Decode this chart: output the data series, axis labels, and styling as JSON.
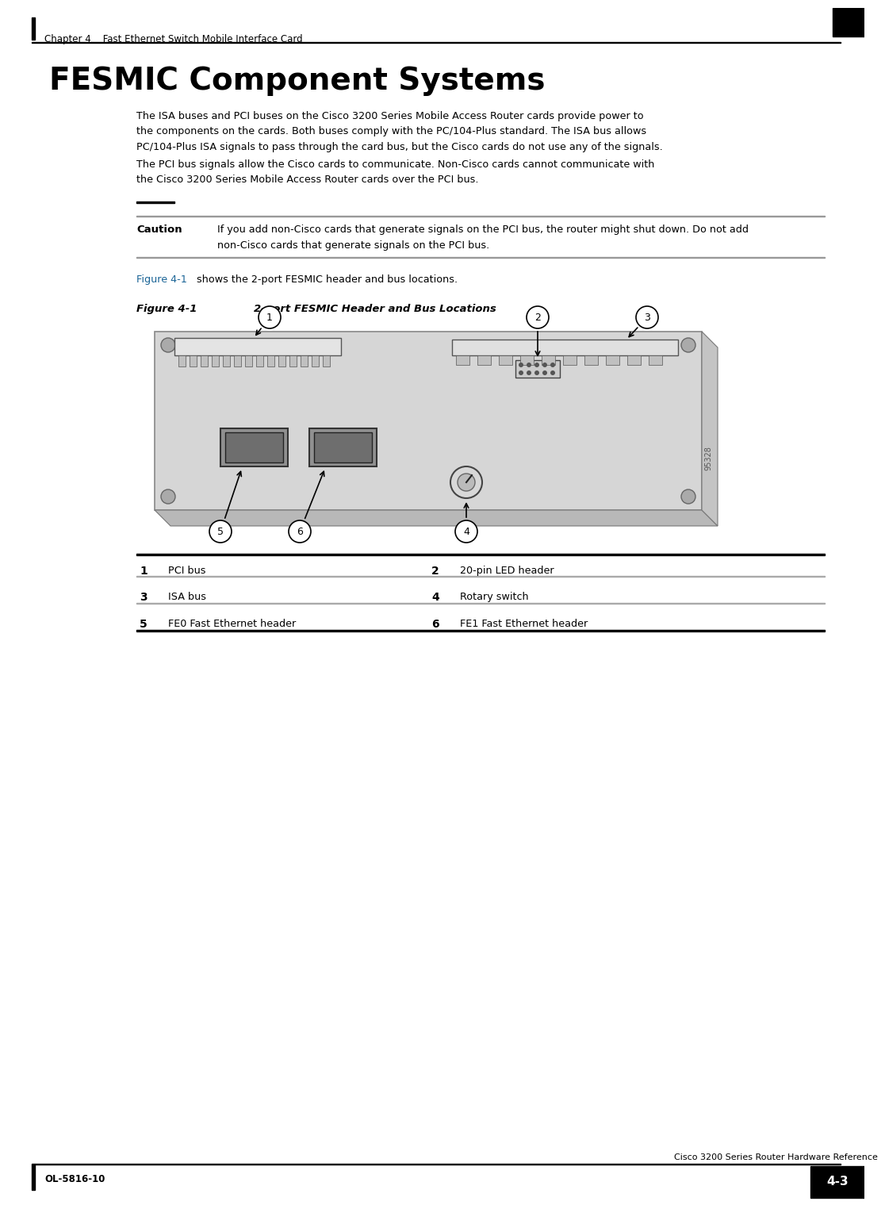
{
  "page_bg": "#ffffff",
  "header_text": "Chapter 4    Fast Ethernet Switch Mobile Interface Card",
  "title": "FESMIC Component Systems",
  "para1_l1": "The ISA buses and PCI buses on the Cisco 3200 Series Mobile Access Router cards provide power to",
  "para1_l2": "the components on the cards. Both buses comply with the PC/104-Plus standard. The ISA bus allows",
  "para1_l3": "PC/104-Plus ISA signals to pass through the card bus, but the Cisco cards do not use any of the signals.",
  "para2_l1": "The PCI bus signals allow the Cisco cards to communicate. Non-Cisco cards cannot communicate with",
  "para2_l2": "the Cisco 3200 Series Mobile Access Router cards over the PCI bus.",
  "caution_label": "Caution",
  "caution_l1": "If you add non-Cisco cards that generate signals on the PCI bus, the router might shut down. Do not add",
  "caution_l2": "non-Cisco cards that generate signals on the PCI bus.",
  "fig_ref_link": "Figure 4-1",
  "fig_ref_link_color": "#1a6496",
  "fig_ref_rest": " shows the 2-port FESMIC header and bus locations.",
  "fig_label": "Figure 4-1",
  "fig_title": "2-port FESMIC Header and Bus Locations",
  "image_num": "95328",
  "table_rows": [
    {
      "col1_num": "1",
      "col1_lbl": "PCI bus",
      "col2_num": "2",
      "col2_lbl": "20-pin LED header"
    },
    {
      "col1_num": "3",
      "col1_lbl": "ISA bus",
      "col2_num": "4",
      "col2_lbl": "Rotary switch"
    },
    {
      "col1_num": "5",
      "col1_lbl": "FE0 Fast Ethernet header",
      "col2_num": "6",
      "col2_lbl": "FE1 Fast Ethernet header"
    }
  ],
  "footer_left": "OL-5816-10",
  "footer_right": "Cisco 3200 Series Router Hardware Reference",
  "footer_page": "4-3"
}
